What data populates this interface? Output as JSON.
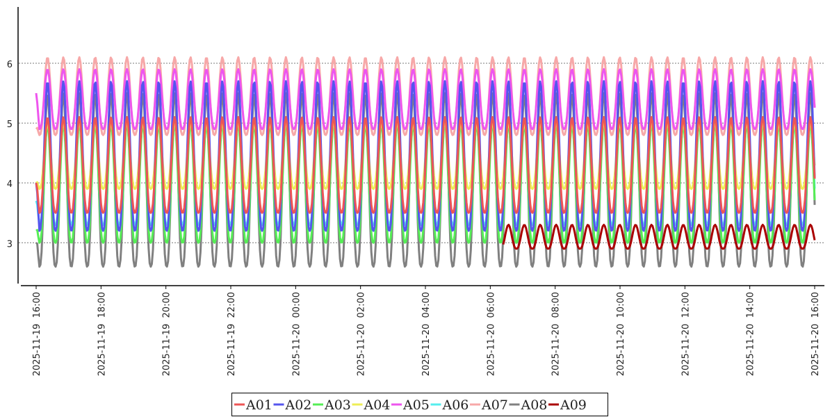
{
  "chart_data": {
    "type": "line",
    "title": "",
    "xlabel": "",
    "ylabel": "",
    "ylim": [
      2.33,
      6.94
    ],
    "y_ticks": [
      "3",
      "4",
      "5",
      "6"
    ],
    "y_tick_values": [
      3,
      4,
      5,
      6
    ],
    "x_range_hours": [
      0,
      24
    ],
    "x_tick_labels": [
      "2025-11-19  16:00",
      "2025-11-19  18:00",
      "2025-11-19  20:00",
      "2025-11-19  22:00",
      "2025-11-20  00:00",
      "2025-11-20  02:00",
      "2025-11-20  04:00",
      "2025-11-20  06:00",
      "2025-11-20  08:00",
      "2025-11-20  10:00",
      "2025-11-20  12:00",
      "2025-11-20  14:00",
      "2025-11-20  16:00"
    ],
    "x_tick_hours": [
      0,
      2,
      4,
      6,
      8,
      10,
      12,
      14,
      16,
      18,
      20,
      22,
      24
    ],
    "grid": "horizontal-dashed",
    "legend_placement": "bottom-center",
    "cycle_period_minutes": 29.4,
    "series": [
      {
        "name": "A07",
        "color": "#f7a8a8",
        "peak": 6.1,
        "trough": 4.8,
        "start": 4.9,
        "floor": 4.8
      },
      {
        "name": "A05",
        "color": "#ee55ee",
        "peak": 5.9,
        "trough": 4.9,
        "start": 5.5,
        "floor": 4.9
      },
      {
        "name": "A08",
        "color": "#808080",
        "peak": 5.5,
        "trough": 2.6,
        "start": 3.0,
        "floor": null
      },
      {
        "name": "A06",
        "color": "#55eeee",
        "peak": 5.0,
        "trough": 3.3,
        "start": 3.7,
        "floor": null
      },
      {
        "name": "A03",
        "color": "#55ee55",
        "peak": 5.0,
        "trough": 3.0,
        "start": 3.2,
        "floor": null
      },
      {
        "name": "A04",
        "color": "#eeee55",
        "peak": 5.0,
        "trough": 3.9,
        "start": 4.0,
        "floor": null
      },
      {
        "name": "A02",
        "color": "#5555ee",
        "peak": 5.7,
        "trough": 3.2,
        "start": 4.0,
        "floor": null
      },
      {
        "name": "A01",
        "color": "#ee5555",
        "peak": 5.1,
        "trough": 3.5,
        "start": 4.0,
        "floor": null
      },
      {
        "name": "A09",
        "color": "#aa0000",
        "peak": 3.3,
        "trough": 2.9,
        "start": 2.9,
        "floor": null
      }
    ],
    "legend": [
      "A01",
      "A02",
      "A03",
      "A04",
      "A05",
      "A06",
      "A07",
      "A08",
      "A09"
    ]
  }
}
